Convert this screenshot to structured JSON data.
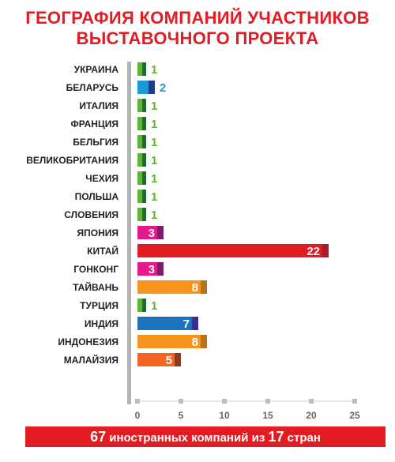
{
  "title": {
    "line1": "ГЕОГРАФИЯ КОМПАНИЙ УЧАСТНИКОВ",
    "line2": "ВЫСТАВОЧНОГО ПРОЕКТА"
  },
  "footer": {
    "count": "67",
    "text1": " иностранных компаний из ",
    "countries": "17",
    "text2": " стран"
  },
  "chart_data": {
    "type": "bar",
    "orientation": "horizontal",
    "title": "ГЕОГРАФИЯ КОМПАНИЙ УЧАСТНИКОВ ВЫСТАВОЧНОГО ПРОЕКТА",
    "categories": [
      "УКРАИНА",
      "БЕЛАРУСЬ",
      "ИТАЛИЯ",
      "ФРАНЦИЯ",
      "БЕЛЬГИЯ",
      "ВЕЛИКОБРИТАНИЯ",
      "ЧЕХИЯ",
      "ПОЛЬША",
      "СЛОВЕНИЯ",
      "ЯПОНИЯ",
      "КИТАЙ",
      "ГОНКОНГ",
      "ТАЙВАНЬ",
      "ТУРЦИЯ",
      "ИНДИЯ",
      "ИНДОНЕЗИЯ",
      "МАЛАЙЗИЯ"
    ],
    "values": [
      1,
      2,
      1,
      1,
      1,
      1,
      1,
      1,
      1,
      3,
      22,
      3,
      8,
      1,
      7,
      8,
      5
    ],
    "colors": [
      "#5fb531",
      "#1a9ad6",
      "#5fb531",
      "#5fb531",
      "#5fb531",
      "#5fb531",
      "#5fb531",
      "#5fb531",
      "#5fb531",
      "#e5198b",
      "#e31b23",
      "#e5198b",
      "#f7941d",
      "#5fb531",
      "#1e73be",
      "#f7941d",
      "#f26522"
    ],
    "shade_colors": [
      "#1d6b2e",
      "#1b3f8f",
      "#1d6b2e",
      "#1d6b2e",
      "#1d6b2e",
      "#1d6b2e",
      "#1d6b2e",
      "#1d6b2e",
      "#1d6b2e",
      "#7b1f6d",
      "#a81d2b",
      "#7b1f6d",
      "#b8741a",
      "#1d6b2e",
      "#3a2f8f",
      "#b8741a",
      "#8a3a1e"
    ],
    "label_inside": [
      false,
      false,
      false,
      false,
      false,
      false,
      false,
      false,
      false,
      true,
      true,
      true,
      true,
      false,
      true,
      true,
      true
    ],
    "label_colors": [
      "#5fb531",
      "#1a9ad6",
      "#5fb531",
      "#5fb531",
      "#5fb531",
      "#5fb531",
      "#5fb531",
      "#5fb531",
      "#5fb531",
      "#ffffff",
      "#ffffff",
      "#ffffff",
      "#ffffff",
      "#5fb531",
      "#ffffff",
      "#ffffff",
      "#ffffff"
    ],
    "x_ticks": [
      0,
      5,
      10,
      15,
      20,
      25
    ],
    "xlim": [
      0,
      25
    ],
    "axis_color": "#b3b3b3",
    "grid": false
  }
}
